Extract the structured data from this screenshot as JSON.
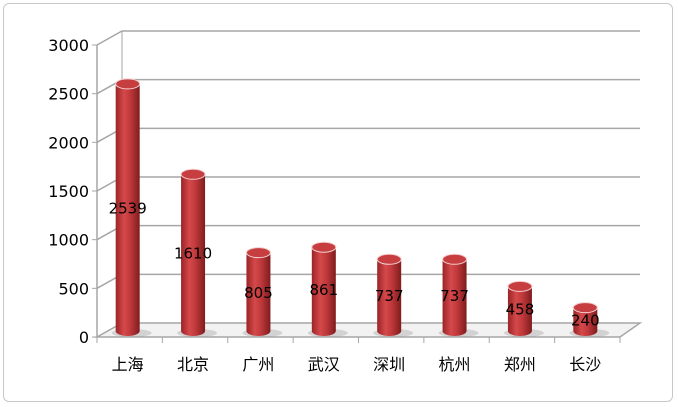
{
  "chart_data": {
    "type": "bar",
    "style": "3d-cylinder",
    "categories": [
      "上海",
      "北京",
      "广州",
      "武汉",
      "深圳",
      "杭州",
      "郑州",
      "长沙"
    ],
    "values": [
      2539,
      1610,
      805,
      861,
      737,
      737,
      458,
      240
    ],
    "data_labels": [
      "2539",
      "1610",
      "805",
      "861",
      "737",
      "737",
      "458",
      "240"
    ],
    "yticks": [
      "0",
      "500",
      "1000",
      "1500",
      "2000",
      "2500",
      "3000"
    ],
    "ylim": [
      0,
      3000
    ],
    "grid": true,
    "legend": "none",
    "colors": {
      "bar": "#c0393b",
      "bar_light": "#e0686a",
      "bar_dark": "#8e2022",
      "grid": "#a6a6a6"
    }
  }
}
